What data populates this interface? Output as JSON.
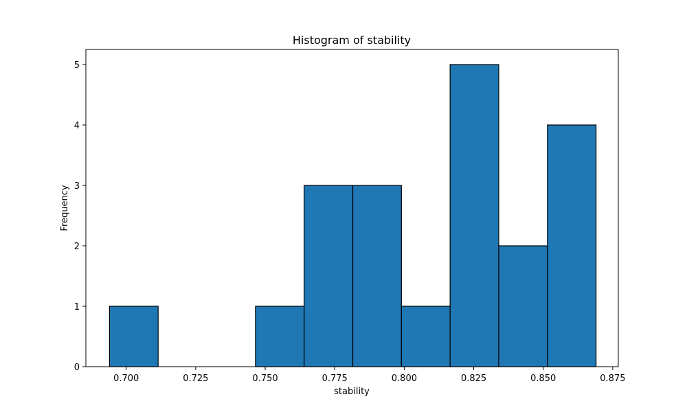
{
  "chart_data": {
    "type": "bar",
    "title": "Histogram of stability",
    "xlabel": "stability",
    "ylabel": "Frequency",
    "xlim": [
      0.6855,
      0.877
    ],
    "ylim": [
      0,
      5.25
    ],
    "bins": [
      [
        0.694,
        0.7115
      ],
      [
        0.7115,
        0.729
      ],
      [
        0.729,
        0.7465
      ],
      [
        0.7465,
        0.764
      ],
      [
        0.764,
        0.7815
      ],
      [
        0.7815,
        0.799
      ],
      [
        0.799,
        0.8165
      ],
      [
        0.8165,
        0.834
      ],
      [
        0.834,
        0.8515
      ],
      [
        0.8515,
        0.869
      ]
    ],
    "values": [
      1,
      0,
      0,
      1,
      3,
      3,
      1,
      5,
      2,
      4
    ],
    "xticks": [
      0.7,
      0.725,
      0.75,
      0.775,
      0.8,
      0.825,
      0.85,
      0.875
    ],
    "xtick_labels": [
      "0.700",
      "0.725",
      "0.750",
      "0.775",
      "0.800",
      "0.825",
      "0.850",
      "0.875"
    ],
    "yticks": [
      0,
      1,
      2,
      3,
      4,
      5
    ],
    "ytick_labels": [
      "0",
      "1",
      "2",
      "3",
      "4",
      "5"
    ],
    "grid": false,
    "colors": {
      "bar_fill": "#1f77b4",
      "bar_edge": "#000000"
    }
  }
}
